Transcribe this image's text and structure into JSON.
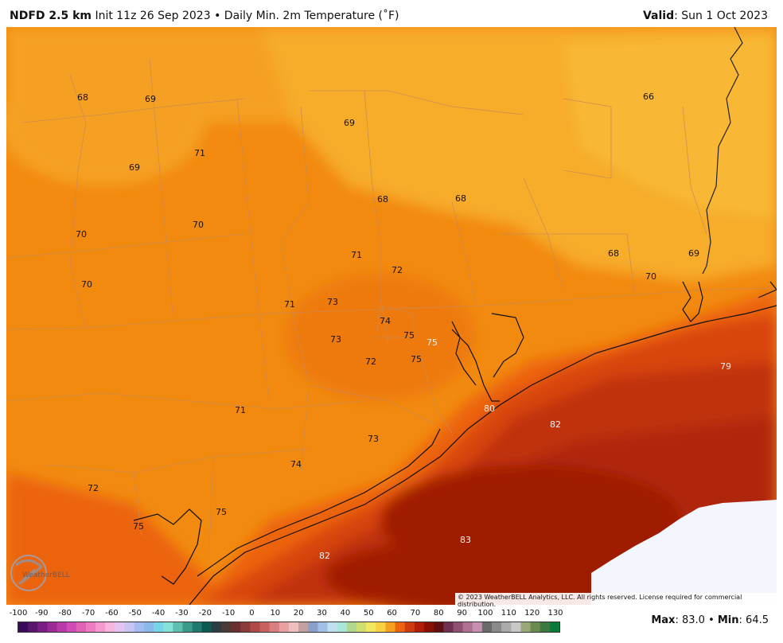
{
  "header": {
    "model": "NDFD 2.5 km",
    "init": "Init 11z 26 Sep 2023",
    "bullet": "•",
    "product": "Daily Min. 2m Temperature (˚F)",
    "valid_label": "Valid",
    "valid_value": ": Sun 1 Oct 2023"
  },
  "logo": {
    "name": "WeatherBELL"
  },
  "copyright": "© 2023 WeatherBELL Analytics, LLC. All rights reserved. License required for commercial distribution.",
  "colorbar": {
    "ticks": [
      "-100",
      "-90",
      "-80",
      "-70",
      "-60",
      "-50",
      "-40",
      "-30",
      "-20",
      "-10",
      "0",
      "10",
      "20",
      "30",
      "40",
      "50",
      "60",
      "70",
      "80",
      "90",
      "100",
      "110",
      "120",
      "130"
    ]
  },
  "stats": {
    "max_label": "Max",
    "max_value": ": 83.0",
    "bullet": "•",
    "min_label": "Min",
    "min_value": ": 64.5"
  },
  "map_labels": [
    {
      "t": "68",
      "c": "dark"
    },
    {
      "t": "69",
      "c": "dark"
    },
    {
      "t": "69",
      "c": "dark"
    },
    {
      "t": "66",
      "c": "dark"
    },
    {
      "t": "71",
      "c": "dark"
    },
    {
      "t": "69",
      "c": "dark"
    },
    {
      "t": "68",
      "c": "dark"
    },
    {
      "t": "68",
      "c": "dark"
    },
    {
      "t": "70",
      "c": "dark"
    },
    {
      "t": "70",
      "c": "dark"
    },
    {
      "t": "71",
      "c": "dark"
    },
    {
      "t": "68",
      "c": "dark"
    },
    {
      "t": "69",
      "c": "dark"
    },
    {
      "t": "72",
      "c": "dark"
    },
    {
      "t": "70",
      "c": "dark"
    },
    {
      "t": "70",
      "c": "dark"
    },
    {
      "t": "71",
      "c": "dark"
    },
    {
      "t": "73",
      "c": "dark"
    },
    {
      "t": "74",
      "c": "dark"
    },
    {
      "t": "75",
      "c": "dark"
    },
    {
      "t": "75",
      "c": "light"
    },
    {
      "t": "73",
      "c": "dark"
    },
    {
      "t": "72",
      "c": "dark"
    },
    {
      "t": "75",
      "c": "dark"
    },
    {
      "t": "79",
      "c": "light"
    },
    {
      "t": "80",
      "c": "light"
    },
    {
      "t": "82",
      "c": "light"
    },
    {
      "t": "71",
      "c": "dark"
    },
    {
      "t": "73",
      "c": "dark"
    },
    {
      "t": "74",
      "c": "dark"
    },
    {
      "t": "72",
      "c": "dark"
    },
    {
      "t": "75",
      "c": "dark"
    },
    {
      "t": "75",
      "c": "dark"
    },
    {
      "t": "83",
      "c": "light"
    },
    {
      "t": "82",
      "c": "light"
    }
  ]
}
